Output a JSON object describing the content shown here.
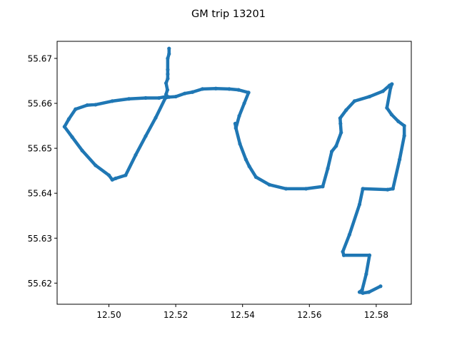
{
  "chart_data": {
    "type": "scatter",
    "title": "GM trip 13201",
    "xlabel": "",
    "ylabel": "",
    "xlim": [
      12.4845,
      12.5905
    ],
    "ylim": [
      55.6153,
      55.6738
    ],
    "x_ticks": [
      "12.50",
      "12.52",
      "12.54",
      "12.56",
      "12.58"
    ],
    "y_ticks": [
      "55.62",
      "55.63",
      "55.64",
      "55.65",
      "55.66",
      "55.67"
    ],
    "grid": false,
    "legend": "none",
    "series": [
      {
        "color": "#1f77b4",
        "marker": "dense-dots",
        "x": [
          12.518,
          12.518,
          12.5176,
          12.5176,
          12.5176,
          12.5176,
          12.5171,
          12.5175,
          12.5171,
          12.5175,
          12.5172,
          12.518,
          12.52,
          12.5227,
          12.525,
          12.528,
          12.532,
          12.536,
          12.5388,
          12.5418,
          12.5405,
          12.539,
          12.538,
          12.5378,
          12.538,
          12.5392,
          12.541,
          12.542,
          12.544,
          12.548,
          12.553,
          12.559,
          12.564,
          12.5655,
          12.5667,
          12.568,
          12.5695,
          12.5693,
          12.5692,
          12.571,
          12.5735,
          12.578,
          12.582,
          12.584,
          12.5847,
          12.5843,
          12.5832,
          12.5846,
          12.5866,
          12.5884,
          12.5884,
          12.587,
          12.585,
          12.5834,
          12.576,
          12.575,
          12.572,
          12.57,
          12.5703,
          12.578,
          12.577,
          12.5758,
          12.575,
          12.576,
          12.5778,
          12.5813
        ],
        "y": [
          55.6722,
          55.671,
          55.67,
          55.6675,
          55.6665,
          55.6655,
          55.6645,
          55.663,
          55.662,
          55.6615,
          55.6613,
          55.6614,
          55.6615,
          55.6622,
          55.6625,
          55.6632,
          55.6633,
          55.6632,
          55.663,
          55.6624,
          55.66,
          55.6572,
          55.6545,
          55.6555,
          55.6545,
          55.651,
          55.6475,
          55.646,
          55.6436,
          55.6419,
          55.641,
          55.641,
          55.6415,
          55.6455,
          55.6493,
          55.6505,
          55.6535,
          55.6555,
          55.6567,
          55.6585,
          55.6605,
          55.6615,
          55.6627,
          55.664,
          55.6643,
          55.6635,
          55.659,
          55.6575,
          55.656,
          55.655,
          55.6528,
          55.6475,
          55.641,
          55.6408,
          55.641,
          55.6375,
          55.6308,
          55.627,
          55.6262,
          55.6262,
          55.622,
          55.6185,
          55.618,
          55.6178,
          55.618,
          55.6193
        ]
      },
      {
        "color": "#1f77b4",
        "marker": "dense-dots",
        "x": [
          12.5171,
          12.514,
          12.511,
          12.508,
          12.505,
          12.502,
          12.501,
          12.5,
          12.496,
          12.492,
          12.489,
          12.4867,
          12.488,
          12.49,
          12.4935,
          12.496,
          12.501,
          12.506,
          12.511,
          12.515,
          12.5171
        ],
        "y": [
          55.6615,
          55.6568,
          55.6527,
          55.6485,
          55.644,
          55.6433,
          55.643,
          55.644,
          55.6462,
          55.6495,
          55.6525,
          55.6548,
          55.6565,
          55.6587,
          55.6596,
          55.6597,
          55.6605,
          55.661,
          55.6612,
          55.6612,
          55.6615
        ]
      }
    ]
  }
}
